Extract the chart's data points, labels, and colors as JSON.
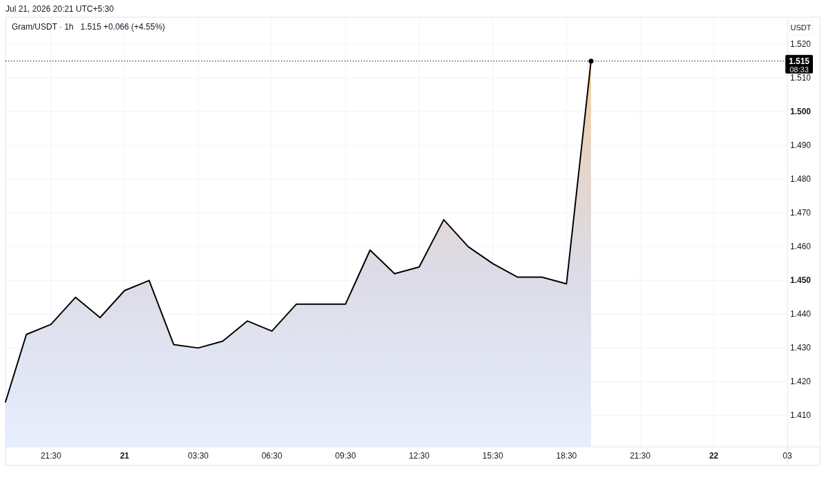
{
  "chart_data": {
    "type": "area",
    "title": "Gram/USDT · 1h",
    "subtitle": "1.515 +0.066 (+4.55%)",
    "ylabel": "USDT",
    "annotations": [
      "Jul 21, 2026 20:21 UTC+5:30",
      "08:33"
    ],
    "series": [
      {
        "color": "#000000",
        "x": [
          "2026-07-20T19:39",
          "2026-07-20T20:30",
          "2026-07-20T21:30",
          "2026-07-20T22:30",
          "2026-07-20T23:30",
          "2026-07-21T00:30",
          "2026-07-21T01:30",
          "2026-07-21T02:30",
          "2026-07-21T03:30",
          "2026-07-21T04:30",
          "2026-07-21T05:30",
          "2026-07-21T06:30",
          "2026-07-21T07:30",
          "2026-07-21T08:30",
          "2026-07-21T09:30",
          "2026-07-21T10:30",
          "2026-07-21T11:30",
          "2026-07-21T12:30",
          "2026-07-21T13:30",
          "2026-07-21T14:30",
          "2026-07-21T15:30",
          "2026-07-21T16:30",
          "2026-07-21T17:30",
          "2026-07-21T18:30",
          "2026-07-21T19:30"
        ],
        "values": [
          1.414,
          1.434,
          1.437,
          1.445,
          1.439,
          1.447,
          1.45,
          1.431,
          1.43,
          1.432,
          1.438,
          1.435,
          1.443,
          1.443,
          1.443,
          1.459,
          1.452,
          1.454,
          1.468,
          1.46,
          1.455,
          1.451,
          1.451,
          1.449,
          1.515
        ]
      },
      {
        "type": "scatter",
        "color": "#000000",
        "marker": "circle",
        "x": [
          "2026-07-21T19:30"
        ],
        "values": [
          1.515
        ]
      }
    ],
    "xlim": [
      "2026-07-20T19:39",
      "2026-07-22T03:30"
    ],
    "xticks": [
      {
        "value": "2026-07-20T21:30",
        "label": "21:30"
      },
      {
        "value": "2026-07-21T00:30",
        "label": "21"
      },
      {
        "value": "2026-07-21T03:30",
        "label": "03:30"
      },
      {
        "value": "2026-07-21T06:30",
        "label": "06:30"
      },
      {
        "value": "2026-07-21T09:30",
        "label": "09:30"
      },
      {
        "value": "2026-07-21T12:30",
        "label": "12:30"
      },
      {
        "value": "2026-07-21T15:30",
        "label": "15:30"
      },
      {
        "value": "2026-07-21T18:30",
        "label": "18:30"
      },
      {
        "value": "2026-07-21T21:30",
        "label": "21:30"
      },
      {
        "value": "2026-07-22T00:30",
        "label": "22"
      },
      {
        "value": "2026-07-22T03:30",
        "label": "03"
      }
    ],
    "ylim": [
      1.4007,
      1.528
    ],
    "yticks": [
      {
        "value": 1.41,
        "label": "1.410"
      },
      {
        "value": 1.42,
        "label": "1.420"
      },
      {
        "value": 1.43,
        "label": "1.430"
      },
      {
        "value": 1.44,
        "label": "1.440"
      },
      {
        "value": 1.45,
        "label": "1.450"
      },
      {
        "value": 1.46,
        "label": "1.460"
      },
      {
        "value": 1.47,
        "label": "1.470"
      },
      {
        "value": 1.48,
        "label": "1.480"
      },
      {
        "value": 1.49,
        "label": "1.490"
      },
      {
        "value": 1.5,
        "label": "1.500"
      },
      {
        "value": 1.51,
        "label": "1.510"
      },
      {
        "value": 1.52,
        "label": "1.520"
      }
    ],
    "ref_lines": [
      {
        "axis": "y",
        "value": 1.515,
        "label": "1.515",
        "color": "#000000",
        "line_style": "dotted"
      }
    ],
    "grid": true
  }
}
